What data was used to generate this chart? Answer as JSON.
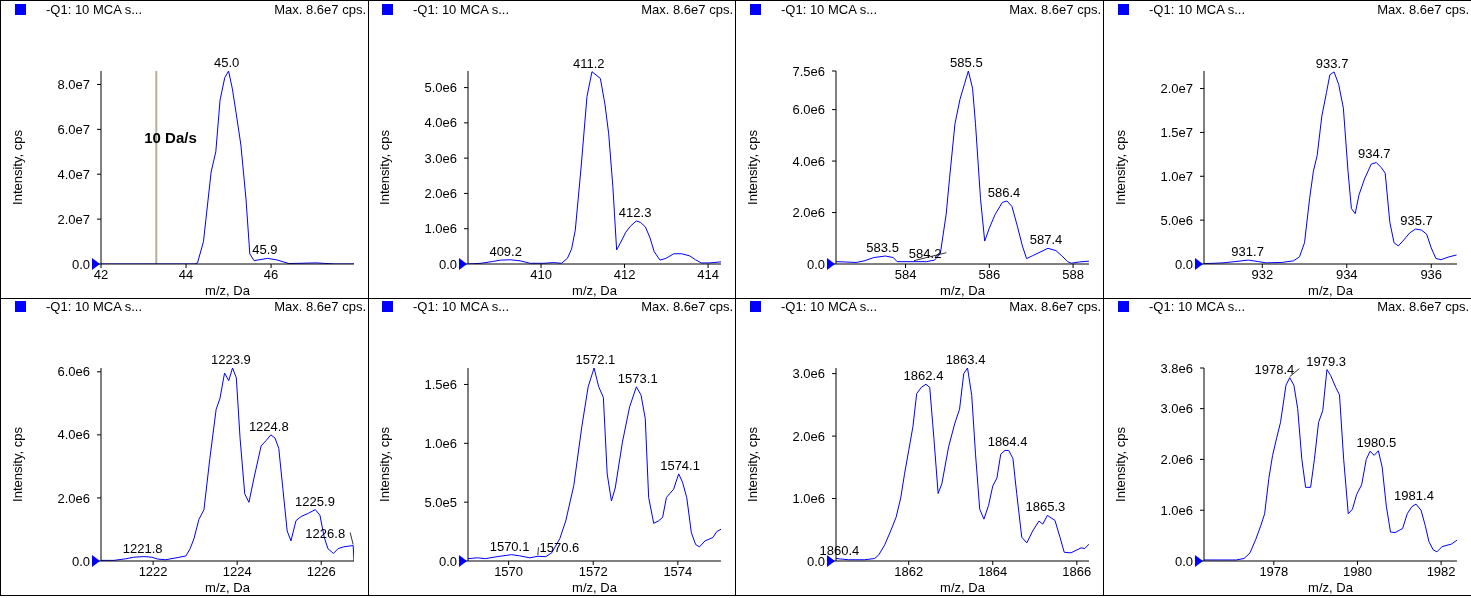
{
  "chart_data": [
    {
      "type": "line",
      "legend": "top left",
      "xlabel": "m/z, Da",
      "ylabel": "Intensity, cps",
      "xlim": [
        42,
        47.95
      ],
      "xticks": [
        42,
        44,
        46
      ],
      "ylim": [
        0,
        86000000.0
      ],
      "yticks": [
        {
          "value": 0,
          "label": "0.0"
        },
        {
          "value": 20000000.0,
          "label": "2.0e7"
        },
        {
          "value": 40000000.0,
          "label": "4.0e7"
        },
        {
          "value": 60000000.0,
          "label": "6.0e7"
        },
        {
          "value": 80000000.0,
          "label": "8.0e7"
        }
      ],
      "series": [
        {
          "name": "-Q1: 10 MCA s...",
          "color": "#0000ff",
          "x": [
            42,
            44.2,
            44.27,
            44.41,
            44.59,
            44.7,
            44.8,
            44.91,
            45.0,
            45.09,
            45.18,
            45.29,
            45.41,
            45.5,
            45.6,
            45.92,
            46.14,
            46.42,
            47.06,
            47.5,
            47.95
          ],
          "values": [
            0,
            0,
            500000.0,
            10000000.0,
            41000000.0,
            50000000.0,
            73000000.0,
            83000000.0,
            86000000.0,
            78000000.0,
            67000000.0,
            53000000.0,
            29000000.0,
            4500000.0,
            1500000.0,
            2500000.0,
            1800000.0,
            200000.0,
            500000.0,
            0,
            0
          ]
        }
      ],
      "ref_lines": [
        {
          "axis": "x",
          "value": 43.3,
          "label": "10 Da/s",
          "color": "#b5b09a"
        }
      ],
      "annotations": [
        "Max. 8.6e7 cps.",
        {
          "text": "45.0",
          "x": 45.0,
          "y": 86000000.0
        },
        {
          "text": "45.9",
          "x": 45.9,
          "y": 2500000.0
        }
      ]
    },
    {
      "type": "line",
      "legend": "top left",
      "xlabel": "m/z, Da",
      "ylabel": "Intensity, cps",
      "xlim": [
        408.25,
        414.31
      ],
      "xticks": [
        410,
        412,
        414
      ],
      "ylim": [
        0,
        5470000.0
      ],
      "yticks": [
        {
          "value": 0,
          "label": "0.0"
        },
        {
          "value": 1000000.0,
          "label": "1.0e6"
        },
        {
          "value": 2000000.0,
          "label": "2.0e6"
        },
        {
          "value": 3000000.0,
          "label": "3.0e6"
        },
        {
          "value": 4000000.0,
          "label": "4.0e6"
        },
        {
          "value": 5000000.0,
          "label": "5.0e6"
        }
      ],
      "series": [
        {
          "name": "-Q1: 10 MCA s...",
          "color": "#0000ff",
          "x": [
            408.25,
            408.56,
            408.84,
            409.03,
            409.26,
            409.5,
            409.74,
            410.07,
            410.3,
            410.49,
            410.63,
            410.73,
            410.82,
            410.96,
            411.1,
            411.22,
            411.42,
            411.53,
            411.62,
            411.72,
            411.81,
            411.91,
            412.03,
            412.14,
            412.28,
            412.38,
            412.5,
            412.61,
            412.71,
            412.85,
            412.99,
            413.18,
            413.37,
            413.56,
            413.7,
            413.84,
            414.03,
            414.31
          ],
          "values": [
            0,
            20000.0,
            70000.0,
            110000.0,
            120000.0,
            90000.0,
            20000.0,
            20000.0,
            40000.0,
            20000.0,
            160000.0,
            420000.0,
            960000.0,
            2750000.0,
            4750000.0,
            5450000.0,
            5260000.0,
            4530000.0,
            3690000.0,
            2190000.0,
            400000.0,
            620000.0,
            900000.0,
            1070000.0,
            1220000.0,
            1180000.0,
            1050000.0,
            740000.0,
            350000.0,
            110000.0,
            160000.0,
            290000.0,
            290000.0,
            230000.0,
            120000.0,
            30000.0,
            30000.0,
            60000.0
          ]
        }
      ],
      "annotations": [
        "Max. 8.6e7 cps.",
        {
          "text": "409.2",
          "x": 409.2,
          "y": 120000.0
        },
        {
          "text": "411.2",
          "x": 411.2,
          "y": 5450000.0
        },
        {
          "text": "412.3",
          "x": 412.3,
          "y": 1220000.0
        }
      ]
    },
    {
      "type": "line",
      "legend": "top left",
      "xlabel": "m/z, Da",
      "ylabel": "Intensity, cps",
      "xlim": [
        582.34,
        588.38
      ],
      "xticks": [
        584,
        586,
        588
      ],
      "ylim": [
        0,
        7500000.0
      ],
      "yticks": [
        {
          "value": 0,
          "label": "0.0"
        },
        {
          "value": 2000000.0,
          "label": "2.0e6"
        },
        {
          "value": 4000000.0,
          "label": "4.0e6"
        },
        {
          "value": 6000000.0,
          "label": "6.0e6"
        },
        {
          "value": 7500000.0,
          "label": "7.5e6"
        }
      ],
      "series": [
        {
          "name": "-Q1: 10 MCA s...",
          "color": "#0000ff",
          "x": [
            582.34,
            582.54,
            582.82,
            583.01,
            583.24,
            583.52,
            583.71,
            583.8,
            584.13,
            584.5,
            584.69,
            584.83,
            584.97,
            585.05,
            585.18,
            585.3,
            585.41,
            585.5,
            585.6,
            585.67,
            585.79,
            585.89,
            586.0,
            586.14,
            586.31,
            586.42,
            586.54,
            586.67,
            586.79,
            586.89,
            587.03,
            587.21,
            587.4,
            587.59,
            587.73,
            587.87,
            587.96,
            588.15,
            588.38
          ],
          "values": [
            90000.0,
            80000.0,
            60000.0,
            120000.0,
            250000.0,
            310000.0,
            250000.0,
            90000.0,
            90000.0,
            90000.0,
            150000.0,
            400000.0,
            1930000.0,
            3310000.0,
            5450000.0,
            6400000.0,
            7010000.0,
            7500000.0,
            6830000.0,
            5450000.0,
            2540000.0,
            890000.0,
            1390000.0,
            1930000.0,
            2390000.0,
            2450000.0,
            2240000.0,
            1470000.0,
            700000.0,
            210000.0,
            320000.0,
            460000.0,
            610000.0,
            520000.0,
            320000.0,
            90000.0,
            30000.0,
            80000.0,
            110000.0
          ]
        }
      ],
      "annotations": [
        "Max. 8.6e7 cps.",
        {
          "text": "583.5",
          "x": 583.5,
          "y": 310000.0
        },
        {
          "text": "584.2",
          "x": 584.2,
          "y": 90000.0
        },
        {
          "text": "585.5",
          "x": 585.5,
          "y": 7500000.0
        },
        {
          "text": "586.4",
          "x": 586.4,
          "y": 2450000.0
        },
        {
          "text": "587.4",
          "x": 587.4,
          "y": 610000.0
        }
      ]
    },
    {
      "type": "line",
      "legend": "top left",
      "xlabel": "m/z, Da",
      "ylabel": "Intensity, cps",
      "xlim": [
        930.62,
        936.61
      ],
      "xticks": [
        932,
        934,
        936
      ],
      "ylim": [
        0,
        22000000.0
      ],
      "yticks": [
        {
          "value": 0,
          "label": "0.0"
        },
        {
          "value": 5000000.0,
          "label": "5.0e6"
        },
        {
          "value": 10000000.0,
          "label": "1.0e7"
        },
        {
          "value": 15000000.0,
          "label": "1.5e7"
        },
        {
          "value": 20000000.0,
          "label": "2.0e7"
        }
      ],
      "series": [
        {
          "name": "-Q1: 10 MCA s...",
          "color": "#0000ff",
          "x": [
            930.62,
            931.07,
            931.35,
            931.67,
            931.91,
            932.09,
            932.47,
            932.74,
            932.88,
            933.0,
            933.12,
            933.21,
            933.3,
            933.41,
            933.52,
            933.6,
            933.7,
            933.81,
            933.92,
            934.03,
            934.11,
            934.2,
            934.29,
            934.42,
            934.58,
            934.7,
            934.81,
            934.91,
            935.02,
            935.12,
            935.22,
            935.35,
            935.49,
            935.63,
            935.77,
            935.89,
            936.0,
            936.11,
            936.23,
            936.42,
            936.6
          ],
          "values": [
            40000.0,
            130000.0,
            270000.0,
            450000.0,
            270000.0,
            130000.0,
            180000.0,
            360000.0,
            810000.0,
            2420000.0,
            7440000.0,
            10580000.0,
            12380000.0,
            16860000.0,
            19550000.0,
            21570000.0,
            21900000.0,
            20450000.0,
            17760000.0,
            10580000.0,
            6320000.0,
            5740000.0,
            7890000.0,
            9690000.0,
            11390000.0,
            11570000.0,
            11030000.0,
            10360000.0,
            4750000.0,
            2420000.0,
            2060000.0,
            2740000.0,
            3540000.0,
            3990000.0,
            3860000.0,
            3410000.0,
            1840000.0,
            630000.0,
            490000.0,
            810000.0,
            1030000.0
          ]
        }
      ],
      "annotations": [
        "Max. 8.6e7 cps.",
        {
          "text": "931.7",
          "x": 931.7,
          "y": 450000.0
        },
        {
          "text": "933.7",
          "x": 933.7,
          "y": 21900000.0
        },
        {
          "text": "934.7",
          "x": 934.7,
          "y": 11570000.0
        },
        {
          "text": "935.7",
          "x": 935.7,
          "y": 3990000.0
        }
      ]
    },
    {
      "type": "line",
      "legend": "top left",
      "xlabel": "m/z, Da",
      "ylabel": "Intensity, cps",
      "xlim": [
        1220.76,
        1226.78
      ],
      "xticks": [
        1222,
        1224,
        1226
      ],
      "ylim": [
        0,
        6120000.0
      ],
      "yticks": [
        {
          "value": 0,
          "label": "0.0"
        },
        {
          "value": 2000000.0,
          "label": "2.0e6"
        },
        {
          "value": 4000000.0,
          "label": "4.0e6"
        },
        {
          "value": 6000000.0,
          "label": "6.0e6"
        }
      ],
      "series": [
        {
          "name": "-Q1: 10 MCA s...",
          "color": "#0000ff",
          "x": [
            1220.76,
            1221.07,
            1221.35,
            1221.54,
            1221.78,
            1221.97,
            1222.11,
            1222.3,
            1222.59,
            1222.78,
            1222.88,
            1222.97,
            1223.09,
            1223.21,
            1223.35,
            1223.5,
            1223.59,
            1223.7,
            1223.8,
            1223.89,
            1223.98,
            1224.07,
            1224.18,
            1224.28,
            1224.4,
            1224.57,
            1224.69,
            1224.8,
            1224.9,
            1224.99,
            1225.09,
            1225.19,
            1225.28,
            1225.4,
            1225.52,
            1225.69,
            1225.86,
            1225.97,
            1226.07,
            1226.16,
            1226.29,
            1226.4,
            1226.54,
            1226.76,
            1226.78
          ],
          "values": [
            20000.0,
            20000.0,
            70000.0,
            120000.0,
            140000.0,
            120000.0,
            60000.0,
            40000.0,
            110000.0,
            160000.0,
            390000.0,
            700000.0,
            1320000.0,
            1630000.0,
            3250000.0,
            4810000.0,
            5150000.0,
            5960000.0,
            5720000.0,
            6120000.0,
            5810000.0,
            3880000.0,
            2130000.0,
            1860000.0,
            2630000.0,
            3650000.0,
            3820000.0,
            4000000.0,
            3900000.0,
            3570000.0,
            2260000.0,
            950000.0,
            640000.0,
            1280000.0,
            1410000.0,
            1510000.0,
            1630000.0,
            1450000.0,
            760000.0,
            390000.0,
            240000.0,
            390000.0,
            450000.0,
            490000.0,
            0
          ]
        }
      ],
      "annotations": [
        "Max. 8.6e7 cps.",
        {
          "text": "1221.8",
          "x": 1221.8,
          "y": 140000.0
        },
        {
          "text": "1223.9",
          "x": 1223.9,
          "y": 6120000.0
        },
        {
          "text": "1224.8",
          "x": 1224.8,
          "y": 4000000.0
        },
        {
          "text": "1225.9",
          "x": 1225.9,
          "y": 1630000.0
        },
        {
          "text": "1226.8",
          "x": 1226.76,
          "y": 490000.0
        }
      ]
    },
    {
      "type": "line",
      "legend": "top left",
      "xlabel": "m/z, Da",
      "ylabel": "Intensity, cps",
      "xlim": [
        1569.04,
        1575.02
      ],
      "xticks": [
        1570,
        1572,
        1574
      ],
      "ylim": [
        0,
        1640000.0
      ],
      "yticks": [
        {
          "value": 0,
          "label": "0.0"
        },
        {
          "value": 500000.0,
          "label": "5.0e5"
        },
        {
          "value": 1000000.0,
          "label": "1.0e6"
        },
        {
          "value": 1500000.0,
          "label": "1.5e6"
        }
      ],
      "series": [
        {
          "name": "-Q1: 10 MCA s...",
          "color": "#0000ff",
          "x": [
            1569.04,
            1569.26,
            1569.45,
            1569.73,
            1570.07,
            1570.26,
            1570.5,
            1570.69,
            1570.88,
            1571.02,
            1571.21,
            1571.35,
            1571.54,
            1571.73,
            1571.88,
            1572.02,
            1572.13,
            1572.24,
            1572.33,
            1572.43,
            1572.52,
            1572.69,
            1572.86,
            1573.02,
            1573.13,
            1573.23,
            1573.31,
            1573.43,
            1573.54,
            1573.64,
            1573.73,
            1573.9,
            1574.02,
            1574.11,
            1574.21,
            1574.32,
            1574.42,
            1574.51,
            1574.64,
            1574.83,
            1574.92,
            1575.02
          ],
          "values": [
            20000.0,
            27000.0,
            20000.0,
            37000.0,
            54000.0,
            44000.0,
            27000.0,
            40000.0,
            37000.0,
            70000.0,
            190000.0,
            340000.0,
            640000.0,
            1140000.0,
            1480000.0,
            1640000.0,
            1480000.0,
            1390000.0,
            740000.0,
            510000.0,
            620000.0,
            1010000.0,
            1310000.0,
            1480000.0,
            1410000.0,
            1210000.0,
            540000.0,
            320000.0,
            340000.0,
            370000.0,
            540000.0,
            610000.0,
            740000.0,
            670000.0,
            540000.0,
            240000.0,
            140000.0,
            120000.0,
            170000.0,
            200000.0,
            250000.0,
            270000.0
          ]
        }
      ],
      "annotations": [
        "Max. 8.6e7 cps.",
        {
          "text": "1570.1",
          "x": 1570.07,
          "y": 54000.0
        },
        {
          "text": "1570.6",
          "x": 1570.69,
          "y": 40000.0
        },
        {
          "text": "1572.1",
          "x": 1572.1,
          "y": 1640000.0
        },
        {
          "text": "1573.1",
          "x": 1573.1,
          "y": 1480000.0
        },
        {
          "text": "1574.1",
          "x": 1574.1,
          "y": 740000.0
        }
      ]
    },
    {
      "type": "line",
      "legend": "top left",
      "xlabel": "m/z, Da",
      "ylabel": "Intensity, cps",
      "xlim": [
        1860.27,
        1866.29
      ],
      "xticks": [
        1862,
        1864,
        1866
      ],
      "ylim": [
        0,
        3090000.0
      ],
      "yticks": [
        {
          "value": 0,
          "label": "0.0"
        },
        {
          "value": 1000000.0,
          "label": "1.0e6"
        },
        {
          "value": 2000000.0,
          "label": "2.0e6"
        },
        {
          "value": 3000000.0,
          "label": "3.0e6"
        }
      ],
      "series": [
        {
          "name": "-Q1: 10 MCA s...",
          "color": "#0000ff",
          "x": [
            1860.27,
            1860.57,
            1860.95,
            1861.19,
            1861.29,
            1861.43,
            1861.57,
            1861.7,
            1861.81,
            1861.9,
            1862.0,
            1862.1,
            1862.19,
            1862.3,
            1862.41,
            1862.5,
            1862.6,
            1862.7,
            1862.79,
            1862.95,
            1863.1,
            1863.21,
            1863.31,
            1863.4,
            1863.5,
            1863.59,
            1863.69,
            1863.79,
            1863.9,
            1864.0,
            1864.1,
            1864.19,
            1864.29,
            1864.38,
            1864.48,
            1864.57,
            1864.69,
            1864.81,
            1864.95,
            1865.1,
            1865.19,
            1865.3,
            1865.48,
            1865.6,
            1865.7,
            1865.86,
            1866.1,
            1866.19,
            1866.29
          ],
          "values": [
            40000.0,
            20000.0,
            20000.0,
            40000.0,
            100000.0,
            260000.0,
            480000.0,
            700000.0,
            1010000.0,
            1390000.0,
            1770000.0,
            2150000.0,
            2680000.0,
            2780000.0,
            2830000.0,
            2780000.0,
            1960000.0,
            1080000.0,
            1240000.0,
            1830000.0,
            2210000.0,
            2430000.0,
            3000000.0,
            3090000.0,
            2650000.0,
            1710000.0,
            830000.0,
            670000.0,
            890000.0,
            1200000.0,
            1330000.0,
            1710000.0,
            1770000.0,
            1770000.0,
            1640000.0,
            1080000.0,
            380000.0,
            290000.0,
            480000.0,
            640000.0,
            590000.0,
            730000.0,
            650000.0,
            380000.0,
            140000.0,
            130000.0,
            210000.0,
            200000.0,
            270000.0
          ]
        }
      ],
      "annotations": [
        "Max. 8.6e7 cps.",
        {
          "text": "1860.4",
          "x": 1860.4,
          "y": 30000.0
        },
        {
          "text": "1862.4",
          "x": 1862.4,
          "y": 2830000.0
        },
        {
          "text": "1863.4",
          "x": 1863.4,
          "y": 3090000.0
        },
        {
          "text": "1864.4",
          "x": 1864.4,
          "y": 1770000.0
        },
        {
          "text": "1865.3",
          "x": 1865.3,
          "y": 730000.0
        }
      ]
    },
    {
      "type": "line",
      "legend": "top left",
      "xlabel": "m/z, Da",
      "ylabel": "Intensity, cps",
      "xlim": [
        1976.33,
        1982.38
      ],
      "xticks": [
        1978,
        1980,
        1982
      ],
      "ylim": [
        0,
        3800000.0
      ],
      "yticks": [
        {
          "value": 0,
          "label": "0.0"
        },
        {
          "value": 1000000.0,
          "label": "1.0e6"
        },
        {
          "value": 2000000.0,
          "label": "2.0e6"
        },
        {
          "value": 3000000.0,
          "label": "3.0e6"
        },
        {
          "value": 3800000.0,
          "label": "3.8e6"
        }
      ],
      "series": [
        {
          "name": "-Q1: 10 MCA s...",
          "color": "#0000ff",
          "x": [
            1976.33,
            1976.71,
            1977.1,
            1977.29,
            1977.43,
            1977.57,
            1977.69,
            1977.78,
            1977.88,
            1977.97,
            1978.07,
            1978.16,
            1978.29,
            1978.38,
            1978.48,
            1978.57,
            1978.67,
            1978.76,
            1978.88,
            1978.97,
            1979.07,
            1979.17,
            1979.27,
            1979.36,
            1979.48,
            1979.57,
            1979.67,
            1979.78,
            1979.88,
            1979.98,
            1980.1,
            1980.21,
            1980.3,
            1980.4,
            1980.5,
            1980.59,
            1980.69,
            1980.79,
            1980.9,
            1981.08,
            1981.19,
            1981.3,
            1981.4,
            1981.52,
            1981.62,
            1981.71,
            1981.81,
            1981.9,
            1982.02,
            1982.14,
            1982.24,
            1982.38
          ],
          "values": [
            20000.0,
            20000.0,
            20000.0,
            50000.0,
            160000.0,
            430000.0,
            700000.0,
            930000.0,
            1620000.0,
            2080000.0,
            2430000.0,
            2730000.0,
            3460000.0,
            3610000.0,
            3460000.0,
            3000000.0,
            2000000.0,
            1450000.0,
            1450000.0,
            2000000.0,
            2730000.0,
            2960000.0,
            3770000.0,
            3650000.0,
            3420000.0,
            3270000.0,
            2000000.0,
            930000.0,
            1020000.0,
            1310000.0,
            1500000.0,
            2000000.0,
            2160000.0,
            2080000.0,
            2170000.0,
            1850000.0,
            1080000.0,
            570000.0,
            560000.0,
            640000.0,
            930000.0,
            1070000.0,
            1120000.0,
            1000000.0,
            700000.0,
            380000.0,
            220000.0,
            180000.0,
            280000.0,
            310000.0,
            330000.0,
            410000.0
          ]
        }
      ],
      "annotations": [
        "Max. 8.6e7 cps.",
        {
          "text": "1978.4",
          "x": 1978.38,
          "y": 3610000.0
        },
        {
          "text": "1979.3",
          "x": 1979.3,
          "y": 3770000.0
        },
        {
          "text": "1980.5",
          "x": 1980.5,
          "y": 2170000.0
        },
        {
          "text": "1981.4",
          "x": 1981.4,
          "y": 1120000.0
        }
      ]
    }
  ]
}
